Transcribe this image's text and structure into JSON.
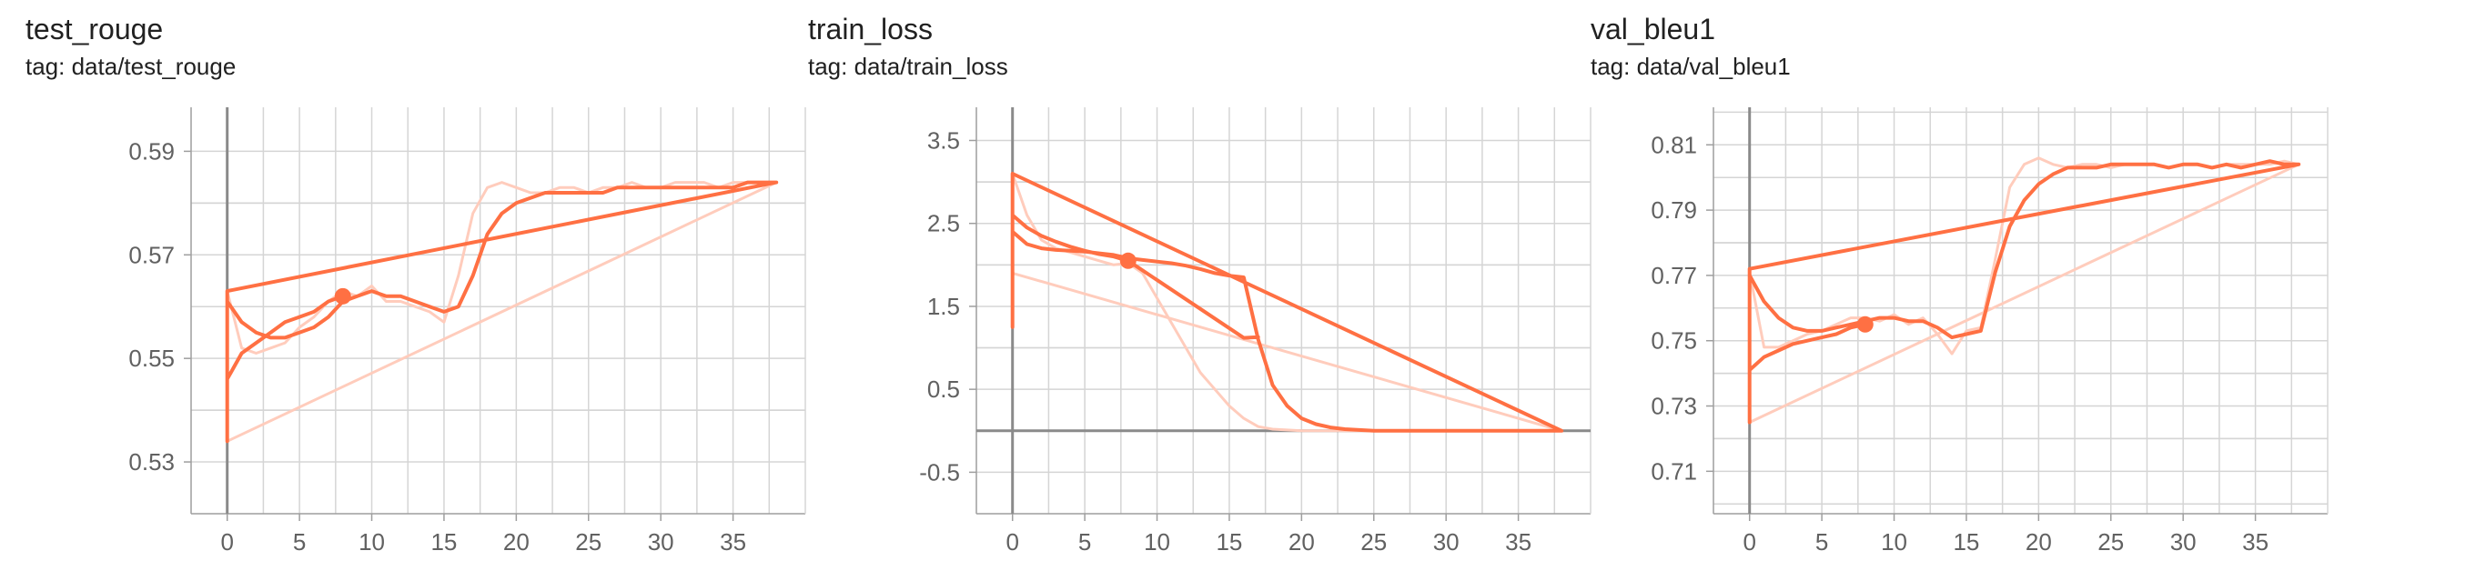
{
  "colors": {
    "series": "#ff7043",
    "series_faint": "#ffccbc",
    "grid": "#d5d5d5",
    "axis": "#9e9e9e",
    "zero_line": "#8a8a8a",
    "tick_text": "#616161",
    "title_text": "#212121"
  },
  "chart_data": [
    {
      "type": "line",
      "title": "test_rouge",
      "subtitle": "tag: data/test_rouge",
      "xticks": [
        "0",
        "5",
        "10",
        "15",
        "20",
        "25",
        "30",
        "35"
      ],
      "yticks": [
        "0.53",
        "0.55",
        "0.57",
        "0.59"
      ],
      "xlim": [
        -2.5,
        40
      ],
      "ylim": [
        0.52,
        0.5985
      ],
      "grid": true,
      "series": [
        {
          "smoothed": true,
          "x": [
            0,
            0,
            1,
            2,
            3,
            4,
            5,
            6,
            7,
            8,
            9,
            10,
            11,
            12,
            13,
            14,
            15,
            16,
            17,
            18,
            19,
            20,
            21,
            22,
            23,
            24,
            25,
            26,
            27,
            28,
            29,
            30,
            31,
            32,
            33,
            34,
            35,
            36,
            37,
            38,
            0,
            0,
            0,
            1,
            2,
            3,
            4,
            5,
            6,
            7,
            8
          ],
          "y": [
            0.563,
            0.561,
            0.557,
            0.555,
            0.554,
            0.554,
            0.555,
            0.556,
            0.558,
            0.561,
            0.562,
            0.563,
            0.562,
            0.562,
            0.561,
            0.56,
            0.559,
            0.56,
            0.566,
            0.574,
            0.578,
            0.58,
            0.581,
            0.582,
            0.582,
            0.582,
            0.582,
            0.582,
            0.583,
            0.583,
            0.583,
            0.583,
            0.583,
            0.583,
            0.583,
            0.583,
            0.583,
            0.584,
            0.584,
            0.584,
            0.563,
            0.534,
            0.546,
            0.551,
            0.553,
            0.555,
            0.557,
            0.558,
            0.559,
            0.561,
            0.562
          ]
        },
        {
          "smoothed": false,
          "x": [
            0,
            1,
            2,
            3,
            4,
            5,
            6,
            7,
            8,
            9,
            10,
            11,
            12,
            13,
            14,
            15,
            16,
            17,
            18,
            19,
            20,
            21,
            22,
            23,
            24,
            25,
            26,
            27,
            28,
            29,
            30,
            31,
            32,
            33,
            34,
            35,
            36,
            37,
            38,
            0
          ],
          "y": [
            0.563,
            0.552,
            0.551,
            0.552,
            0.553,
            0.556,
            0.558,
            0.561,
            0.563,
            0.562,
            0.564,
            0.561,
            0.561,
            0.56,
            0.559,
            0.557,
            0.566,
            0.578,
            0.583,
            0.584,
            0.583,
            0.582,
            0.582,
            0.583,
            0.583,
            0.582,
            0.583,
            0.583,
            0.584,
            0.583,
            0.583,
            0.584,
            0.584,
            0.584,
            0.583,
            0.584,
            0.584,
            0.584,
            0.584,
            0.534
          ]
        }
      ],
      "marker": {
        "x": 8,
        "y": 0.562
      }
    },
    {
      "type": "line",
      "title": "train_loss",
      "subtitle": "tag: data/train_loss",
      "xticks": [
        "0",
        "5",
        "10",
        "15",
        "20",
        "25",
        "30",
        "35"
      ],
      "yticks": [
        "3.5",
        "2.5",
        "1.5",
        "0.5",
        "-0.5"
      ],
      "xlim": [
        -2.5,
        40
      ],
      "ylim": [
        -1.0,
        3.9
      ],
      "grid": true,
      "series": [
        {
          "smoothed": true,
          "x": [
            0,
            0,
            1,
            2,
            3,
            4,
            5,
            6,
            7,
            8,
            9,
            10,
            11,
            12,
            13,
            14,
            15,
            16,
            17,
            18,
            19,
            20,
            21,
            22,
            23,
            24,
            25,
            30,
            35,
            38,
            0,
            0,
            0,
            1,
            2,
            3,
            4,
            5,
            6,
            7,
            8,
            16,
            17
          ],
          "y": [
            2.55,
            2.4,
            2.25,
            2.2,
            2.18,
            2.17,
            2.16,
            2.14,
            2.12,
            2.08,
            2.06,
            2.04,
            2.02,
            1.99,
            1.95,
            1.9,
            1.87,
            1.85,
            1.1,
            0.55,
            0.3,
            0.15,
            0.08,
            0.04,
            0.02,
            0.01,
            0.0,
            0.0,
            0.0,
            0.0,
            3.1,
            1.25,
            2.6,
            2.45,
            2.35,
            2.28,
            2.22,
            2.17,
            2.13,
            2.1,
            2.05,
            1.12,
            1.13
          ]
        },
        {
          "smoothed": false,
          "x": [
            0,
            1,
            2,
            3,
            4,
            5,
            6,
            7,
            8,
            9,
            10,
            11,
            12,
            13,
            14,
            15,
            16,
            17,
            18,
            19,
            20,
            21,
            22,
            23,
            24,
            25,
            26,
            27,
            28,
            29,
            30,
            31,
            32,
            33,
            34,
            35,
            36,
            37,
            38,
            0
          ],
          "y": [
            3.1,
            2.6,
            2.3,
            2.2,
            2.15,
            2.1,
            2.05,
            2.0,
            2.02,
            1.9,
            1.6,
            1.3,
            1.0,
            0.7,
            0.5,
            0.3,
            0.15,
            0.05,
            0.02,
            0.01,
            0.0,
            0.0,
            0.0,
            0.0,
            0.0,
            0.0,
            0.0,
            0.0,
            0.0,
            0.0,
            0.0,
            0.0,
            0.0,
            0.0,
            0.0,
            0.0,
            0.0,
            0.0,
            0.0,
            1.9
          ]
        }
      ],
      "marker": {
        "x": 8,
        "y": 2.05
      }
    },
    {
      "type": "line",
      "title": "val_bleu1",
      "subtitle": "tag: data/val_bleu1",
      "xticks": [
        "0",
        "5",
        "10",
        "15",
        "20",
        "25",
        "30",
        "35"
      ],
      "yticks": [
        "0.81",
        "0.79",
        "0.77",
        "0.75",
        "0.73",
        "0.71"
      ],
      "xlim": [
        -2.5,
        40
      ],
      "ylim": [
        0.697,
        0.8215
      ],
      "grid": true,
      "series": [
        {
          "smoothed": true,
          "x": [
            0,
            0,
            1,
            2,
            3,
            4,
            5,
            6,
            7,
            8,
            9,
            10,
            11,
            12,
            13,
            14,
            15,
            16,
            17,
            18,
            19,
            20,
            21,
            22,
            23,
            24,
            25,
            26,
            27,
            28,
            29,
            30,
            31,
            32,
            33,
            34,
            35,
            36,
            37,
            38,
            0,
            0,
            0,
            1,
            2,
            3,
            4,
            5,
            6,
            7,
            8
          ],
          "y": [
            0.772,
            0.77,
            0.762,
            0.757,
            0.754,
            0.753,
            0.753,
            0.754,
            0.755,
            0.756,
            0.757,
            0.757,
            0.756,
            0.756,
            0.754,
            0.751,
            0.752,
            0.753,
            0.771,
            0.785,
            0.793,
            0.798,
            0.801,
            0.803,
            0.803,
            0.803,
            0.804,
            0.804,
            0.804,
            0.804,
            0.803,
            0.804,
            0.804,
            0.803,
            0.804,
            0.803,
            0.804,
            0.805,
            0.804,
            0.804,
            0.772,
            0.725,
            0.741,
            0.745,
            0.747,
            0.749,
            0.75,
            0.751,
            0.752,
            0.754,
            0.755
          ]
        },
        {
          "smoothed": false,
          "x": [
            0,
            1,
            2,
            3,
            4,
            5,
            6,
            7,
            8,
            9,
            10,
            11,
            12,
            13,
            14,
            15,
            16,
            17,
            18,
            19,
            20,
            21,
            22,
            23,
            24,
            25,
            26,
            27,
            28,
            29,
            30,
            31,
            32,
            33,
            34,
            35,
            36,
            37,
            38,
            0
          ],
          "y": [
            0.771,
            0.748,
            0.748,
            0.75,
            0.752,
            0.753,
            0.755,
            0.757,
            0.757,
            0.756,
            0.758,
            0.755,
            0.757,
            0.752,
            0.746,
            0.753,
            0.754,
            0.775,
            0.797,
            0.804,
            0.806,
            0.804,
            0.803,
            0.804,
            0.804,
            0.803,
            0.804,
            0.804,
            0.804,
            0.803,
            0.804,
            0.804,
            0.803,
            0.804,
            0.804,
            0.804,
            0.804,
            0.805,
            0.804,
            0.725
          ]
        }
      ],
      "marker": {
        "x": 8,
        "y": 0.755
      }
    }
  ]
}
